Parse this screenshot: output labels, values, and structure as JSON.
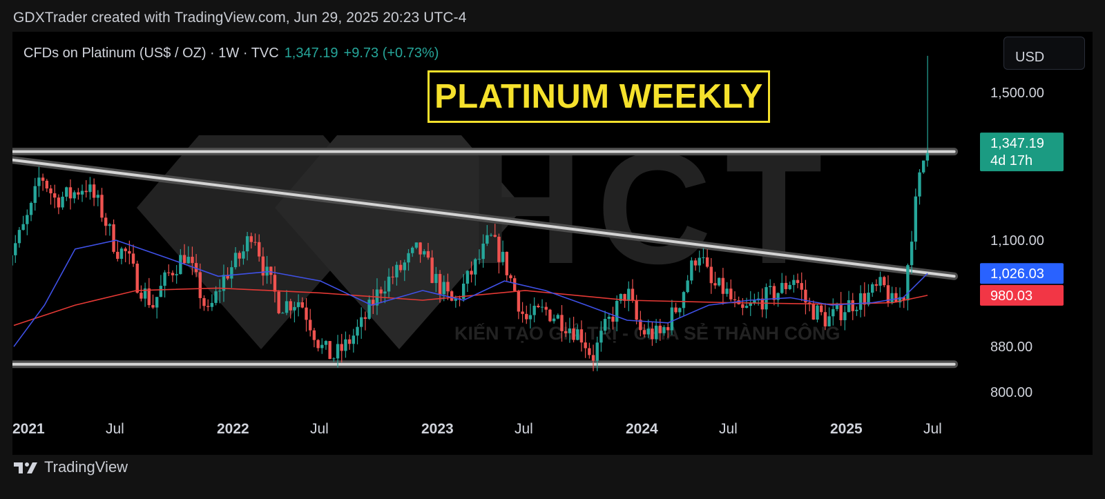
{
  "header": {
    "caption": "GDXTrader created with TradingView.com, Jun 29, 2025 20:23 UTC-4"
  },
  "legend": {
    "symbol": "CFDs on Platinum (US$ / OZ) · 1W · TVC",
    "price": "1,347.19",
    "change": "+9.73 (+0.73%)"
  },
  "currency_button": "USD",
  "watermark": {
    "brand": "HCT",
    "slogan": "KIẾN TẠO GIÁ TRỊ - CHIA SẺ THÀNH CÔNG"
  },
  "footer": {
    "brand": "TradingView"
  },
  "colors": {
    "up": "#26a69a",
    "down": "#ef5350",
    "ma_blue": "#3f51e8",
    "ma_red": "#e53935",
    "title": "#f5e12c",
    "price_badge": "#1b9b82",
    "blue_badge": "#2962ff",
    "red_badge": "#f23645"
  },
  "chart_data": {
    "type": "candlestick",
    "title": "PLATINUM WEEKLY",
    "ylim": [
      760,
      1620
    ],
    "y_scale": "log",
    "y_ticks": [
      {
        "value": 1500,
        "label": "1,500.00"
      },
      {
        "value": 1100,
        "label": "1,100.00"
      },
      {
        "value": 880,
        "label": "880.00"
      },
      {
        "value": 800,
        "label": "800.00"
      }
    ],
    "x_ticks": [
      {
        "t": 2021.0,
        "label": "2021",
        "bold": true
      },
      {
        "t": 2021.5,
        "label": "Jul",
        "bold": false
      },
      {
        "t": 2022.0,
        "label": "2022",
        "bold": true
      },
      {
        "t": 2022.5,
        "label": "Jul",
        "bold": false
      },
      {
        "t": 2023.0,
        "label": "2023",
        "bold": true
      },
      {
        "t": 2023.5,
        "label": "Jul",
        "bold": false
      },
      {
        "t": 2024.0,
        "label": "2024",
        "bold": true
      },
      {
        "t": 2024.5,
        "label": "Jul",
        "bold": false
      },
      {
        "t": 2025.0,
        "label": "2025",
        "bold": true
      },
      {
        "t": 2025.5,
        "label": "Jul",
        "bold": false
      }
    ],
    "price_badges": [
      {
        "name": "last-price",
        "value": 1347.19,
        "label": "1,347.19",
        "sub": "4d 17h",
        "color": "#1b9b82"
      },
      {
        "name": "ma-blue",
        "value": 1026.03,
        "label": "1,026.03",
        "color": "#2962ff"
      },
      {
        "name": "ma-red",
        "value": 980.03,
        "label": "980.03",
        "color": "#f23645"
      }
    ],
    "price_anchors": [
      {
        "t": 2020.95,
        "p": 1040
      },
      {
        "t": 2021.04,
        "p": 1120
      },
      {
        "t": 2021.09,
        "p": 1180
      },
      {
        "t": 2021.13,
        "p": 1265
      },
      {
        "t": 2021.2,
        "p": 1200
      },
      {
        "t": 2021.28,
        "p": 1210
      },
      {
        "t": 2021.35,
        "p": 1235
      },
      {
        "t": 2021.42,
        "p": 1180
      },
      {
        "t": 2021.5,
        "p": 1080
      },
      {
        "t": 2021.55,
        "p": 1070
      },
      {
        "t": 2021.6,
        "p": 1010
      },
      {
        "t": 2021.68,
        "p": 960
      },
      {
        "t": 2021.75,
        "p": 1020
      },
      {
        "t": 2021.84,
        "p": 1070
      },
      {
        "t": 2021.95,
        "p": 940
      },
      {
        "t": 2022.03,
        "p": 1020
      },
      {
        "t": 2022.12,
        "p": 1070
      },
      {
        "t": 2022.17,
        "p": 1130
      },
      {
        "t": 2022.22,
        "p": 1040
      },
      {
        "t": 2022.3,
        "p": 960
      },
      {
        "t": 2022.4,
        "p": 970
      },
      {
        "t": 2022.5,
        "p": 880
      },
      {
        "t": 2022.56,
        "p": 860
      },
      {
        "t": 2022.62,
        "p": 880
      },
      {
        "t": 2022.7,
        "p": 920
      },
      {
        "t": 2022.8,
        "p": 1000
      },
      {
        "t": 2022.88,
        "p": 1030
      },
      {
        "t": 2022.98,
        "p": 1080
      },
      {
        "t": 2023.05,
        "p": 1020
      },
      {
        "t": 2023.15,
        "p": 960
      },
      {
        "t": 2023.28,
        "p": 1060
      },
      {
        "t": 2023.33,
        "p": 1105
      },
      {
        "t": 2023.4,
        "p": 1050
      },
      {
        "t": 2023.5,
        "p": 930
      },
      {
        "t": 2023.6,
        "p": 950
      },
      {
        "t": 2023.68,
        "p": 930
      },
      {
        "t": 2023.78,
        "p": 900
      },
      {
        "t": 2023.83,
        "p": 860
      },
      {
        "t": 2023.9,
        "p": 920
      },
      {
        "t": 2024.0,
        "p": 990
      },
      {
        "t": 2024.06,
        "p": 910
      },
      {
        "t": 2024.16,
        "p": 900
      },
      {
        "t": 2024.25,
        "p": 960
      },
      {
        "t": 2024.35,
        "p": 1080
      },
      {
        "t": 2024.41,
        "p": 1000
      },
      {
        "t": 2024.48,
        "p": 990
      },
      {
        "t": 2024.55,
        "p": 940
      },
      {
        "t": 2024.65,
        "p": 970
      },
      {
        "t": 2024.75,
        "p": 990
      },
      {
        "t": 2024.82,
        "p": 1020
      },
      {
        "t": 2024.88,
        "p": 960
      },
      {
        "t": 2024.98,
        "p": 930
      },
      {
        "t": 2025.08,
        "p": 960
      },
      {
        "t": 2025.18,
        "p": 980
      },
      {
        "t": 2025.25,
        "p": 1000
      },
      {
        "t": 2025.3,
        "p": 960
      },
      {
        "t": 2025.36,
        "p": 985
      },
      {
        "t": 2025.38,
        "p": 1080
      },
      {
        "t": 2025.41,
        "p": 1180
      },
      {
        "t": 2025.44,
        "p": 1280
      },
      {
        "t": 2025.47,
        "p": 1347.19
      }
    ],
    "ma_blue": [
      {
        "t": 2021.0,
        "p": 880
      },
      {
        "t": 2021.15,
        "p": 960
      },
      {
        "t": 2021.3,
        "p": 1080
      },
      {
        "t": 2021.5,
        "p": 1100
      },
      {
        "t": 2021.75,
        "p": 1060
      },
      {
        "t": 2022.0,
        "p": 1020
      },
      {
        "t": 2022.25,
        "p": 1030
      },
      {
        "t": 2022.5,
        "p": 1010
      },
      {
        "t": 2022.75,
        "p": 960
      },
      {
        "t": 2023.0,
        "p": 990
      },
      {
        "t": 2023.2,
        "p": 970
      },
      {
        "t": 2023.4,
        "p": 1010
      },
      {
        "t": 2023.6,
        "p": 990
      },
      {
        "t": 2023.8,
        "p": 960
      },
      {
        "t": 2024.0,
        "p": 930
      },
      {
        "t": 2024.2,
        "p": 925
      },
      {
        "t": 2024.4,
        "p": 960
      },
      {
        "t": 2024.6,
        "p": 970
      },
      {
        "t": 2024.8,
        "p": 975
      },
      {
        "t": 2025.0,
        "p": 960
      },
      {
        "t": 2025.2,
        "p": 965
      },
      {
        "t": 2025.35,
        "p": 975
      },
      {
        "t": 2025.47,
        "p": 1026.03
      }
    ],
    "ma_red": [
      {
        "t": 2021.0,
        "p": 920
      },
      {
        "t": 2021.3,
        "p": 960
      },
      {
        "t": 2021.6,
        "p": 990
      },
      {
        "t": 2022.0,
        "p": 995
      },
      {
        "t": 2022.5,
        "p": 985
      },
      {
        "t": 2023.0,
        "p": 970
      },
      {
        "t": 2023.5,
        "p": 990
      },
      {
        "t": 2024.0,
        "p": 970
      },
      {
        "t": 2024.5,
        "p": 965
      },
      {
        "t": 2025.0,
        "p": 962
      },
      {
        "t": 2025.3,
        "p": 965
      },
      {
        "t": 2025.47,
        "p": 980.03
      }
    ],
    "trendlines": [
      {
        "name": "resistance-horizontal",
        "t1": 2020.95,
        "p1": 1325,
        "t2": 2025.6,
        "p2": 1325
      },
      {
        "name": "descending-trendline",
        "t1": 2020.95,
        "p1": 1305,
        "t2": 2025.6,
        "p2": 1020
      },
      {
        "name": "support-horizontal",
        "t1": 2020.95,
        "p1": 848,
        "t2": 2025.6,
        "p2": 848
      }
    ]
  }
}
